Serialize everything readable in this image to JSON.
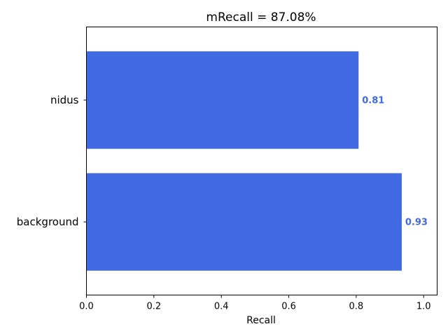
{
  "chart_data": {
    "type": "bar",
    "orientation": "horizontal",
    "title": "mRecall = 87.08%",
    "xlabel": "Recall",
    "ylabel": "",
    "categories": [
      "nidus",
      "background"
    ],
    "values": [
      0.807,
      0.935
    ],
    "value_labels": [
      "0.81",
      "0.93"
    ],
    "xlim": [
      0,
      1.04
    ],
    "xticks": [
      0.0,
      0.2,
      0.4,
      0.6,
      0.8,
      1.0
    ],
    "xtick_labels": [
      "0.0",
      "0.2",
      "0.4",
      "0.6",
      "0.8",
      "1.0"
    ],
    "grid": false,
    "bar_color": "#4169E1",
    "label_color": "#4169E1"
  }
}
